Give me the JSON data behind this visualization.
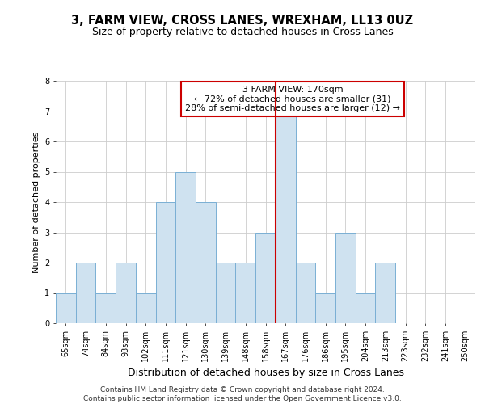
{
  "title": "3, FARM VIEW, CROSS LANES, WREXHAM, LL13 0UZ",
  "subtitle": "Size of property relative to detached houses in Cross Lanes",
  "xlabel": "Distribution of detached houses by size in Cross Lanes",
  "ylabel": "Number of detached properties",
  "categories": [
    "65sqm",
    "74sqm",
    "84sqm",
    "93sqm",
    "102sqm",
    "111sqm",
    "121sqm",
    "130sqm",
    "139sqm",
    "148sqm",
    "158sqm",
    "167sqm",
    "176sqm",
    "186sqm",
    "195sqm",
    "204sqm",
    "213sqm",
    "223sqm",
    "232sqm",
    "241sqm",
    "250sqm"
  ],
  "values": [
    1,
    2,
    1,
    2,
    1,
    4,
    5,
    4,
    2,
    2,
    3,
    7,
    2,
    1,
    3,
    1,
    2,
    0,
    0,
    0,
    0
  ],
  "bar_color": "#cfe2f0",
  "bar_edge_color": "#7aafd4",
  "reference_line_x": 10.5,
  "reference_line_color": "#cc0000",
  "annotation_line1": "3 FARM VIEW: 170sqm",
  "annotation_line2": "← 72% of detached houses are smaller (31)",
  "annotation_line3": "28% of semi-detached houses are larger (12) →",
  "annotation_box_edgecolor": "#cc0000",
  "ylim": [
    0,
    8
  ],
  "yticks": [
    0,
    1,
    2,
    3,
    4,
    5,
    6,
    7,
    8
  ],
  "grid_color": "#cccccc",
  "plot_bg_color": "#ffffff",
  "fig_bg_color": "#ffffff",
  "footer": "Contains HM Land Registry data © Crown copyright and database right 2024.\nContains public sector information licensed under the Open Government Licence v3.0.",
  "title_fontsize": 10.5,
  "subtitle_fontsize": 9,
  "xlabel_fontsize": 9,
  "ylabel_fontsize": 8,
  "tick_fontsize": 7,
  "annot_fontsize": 8,
  "footer_fontsize": 6.5
}
